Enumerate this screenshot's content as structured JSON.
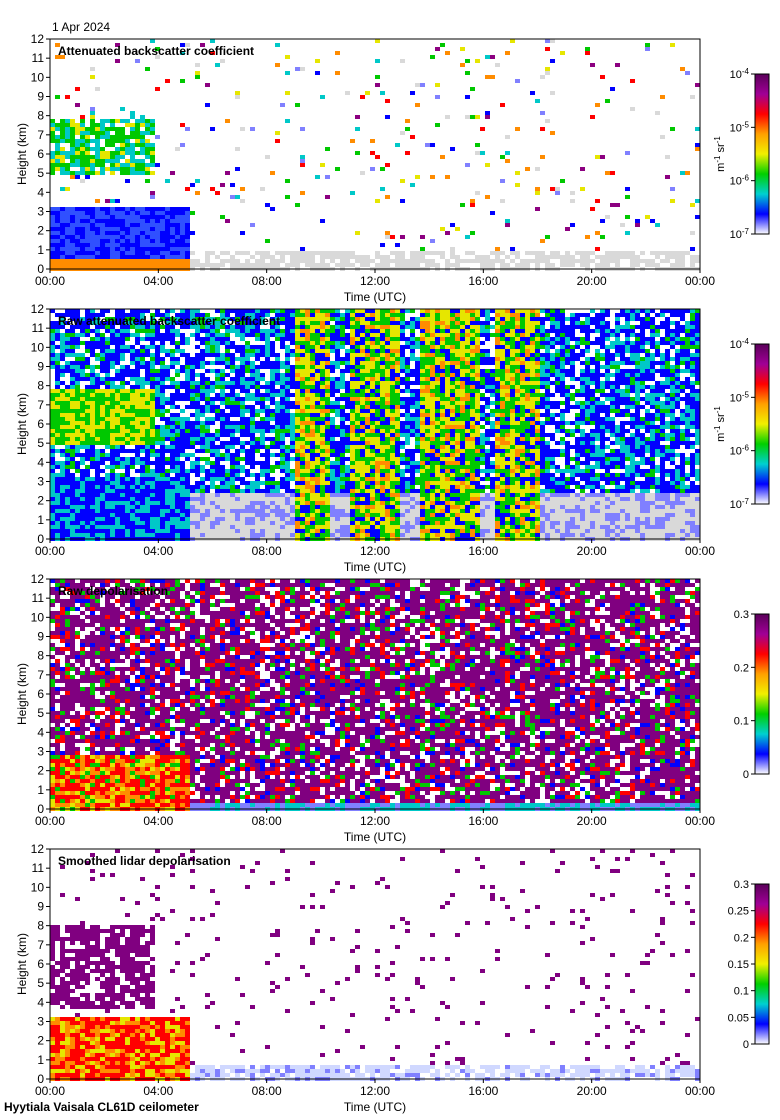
{
  "date": "1 Apr 2024",
  "footer": "Hyytiala Vaisala CL61D ceilometer",
  "chart_data": [
    {
      "type": "heatmap",
      "title": "Attenuated backscatter coefficient",
      "xlabel": "Time (UTC)",
      "ylabel": "Height (km)",
      "x_ticks": [
        "00:00",
        "04:00",
        "08:00",
        "12:00",
        "16:00",
        "20:00",
        "00:00"
      ],
      "y_ticks": [
        "0",
        "1",
        "2",
        "3",
        "4",
        "5",
        "6",
        "7",
        "8",
        "9",
        "10",
        "11",
        "12"
      ],
      "ylim": [
        0,
        12
      ],
      "xlim_hours": [
        0,
        24
      ],
      "colorbar": {
        "scale": "log",
        "ticks": [
          {
            "base": "10",
            "exp": "-4"
          },
          {
            "base": "10",
            "exp": "-5"
          },
          {
            "base": "10",
            "exp": "-6"
          },
          {
            "base": "10",
            "exp": "-7"
          }
        ],
        "unit_parts": [
          {
            "base": "m",
            "exp": "-1"
          },
          {
            "base": " sr",
            "exp": "-1"
          }
        ]
      }
    },
    {
      "type": "heatmap",
      "title": "Raw attenuated backscatter coefficient",
      "xlabel": "Time (UTC)",
      "ylabel": "Height (km)",
      "x_ticks": [
        "00:00",
        "04:00",
        "08:00",
        "12:00",
        "16:00",
        "20:00",
        "00:00"
      ],
      "y_ticks": [
        "0",
        "1",
        "2",
        "3",
        "4",
        "5",
        "6",
        "7",
        "8",
        "9",
        "10",
        "11",
        "12"
      ],
      "ylim": [
        0,
        12
      ],
      "xlim_hours": [
        0,
        24
      ],
      "colorbar": {
        "scale": "log",
        "ticks": [
          {
            "base": "10",
            "exp": "-4"
          },
          {
            "base": "10",
            "exp": "-5"
          },
          {
            "base": "10",
            "exp": "-6"
          },
          {
            "base": "10",
            "exp": "-7"
          }
        ],
        "unit_parts": [
          {
            "base": "m",
            "exp": "-1"
          },
          {
            "base": " sr",
            "exp": "-1"
          }
        ]
      }
    },
    {
      "type": "heatmap",
      "title": "Raw depolarisation",
      "xlabel": "Time (UTC)",
      "ylabel": "Height (km)",
      "x_ticks": [
        "00:00",
        "04:00",
        "08:00",
        "12:00",
        "16:00",
        "20:00",
        "00:00"
      ],
      "y_ticks": [
        "0",
        "1",
        "2",
        "3",
        "4",
        "5",
        "6",
        "7",
        "8",
        "9",
        "10",
        "11",
        "12"
      ],
      "ylim": [
        0,
        12
      ],
      "xlim_hours": [
        0,
        24
      ],
      "colorbar": {
        "scale": "linear",
        "ticks": [
          {
            "base": "0.3"
          },
          {
            "base": "0.2"
          },
          {
            "base": "0.1"
          },
          {
            "base": "0"
          }
        ],
        "unit_parts": []
      }
    },
    {
      "type": "heatmap",
      "title": "Smoothed lidar depolarisation",
      "xlabel": "Time (UTC)",
      "ylabel": "Height (km)",
      "x_ticks": [
        "00:00",
        "04:00",
        "08:00",
        "12:00",
        "16:00",
        "20:00",
        "00:00"
      ],
      "y_ticks": [
        "0",
        "1",
        "2",
        "3",
        "4",
        "5",
        "6",
        "7",
        "8",
        "9",
        "10",
        "11",
        "12"
      ],
      "ylim": [
        0,
        12
      ],
      "xlim_hours": [
        0,
        24
      ],
      "colorbar": {
        "scale": "linear",
        "ticks": [
          {
            "base": "0.3"
          },
          {
            "base": "0.25"
          },
          {
            "base": "0.2"
          },
          {
            "base": "0.15"
          },
          {
            "base": "0.1"
          },
          {
            "base": "0.05"
          },
          {
            "base": "0"
          }
        ],
        "unit_parts": []
      }
    }
  ]
}
